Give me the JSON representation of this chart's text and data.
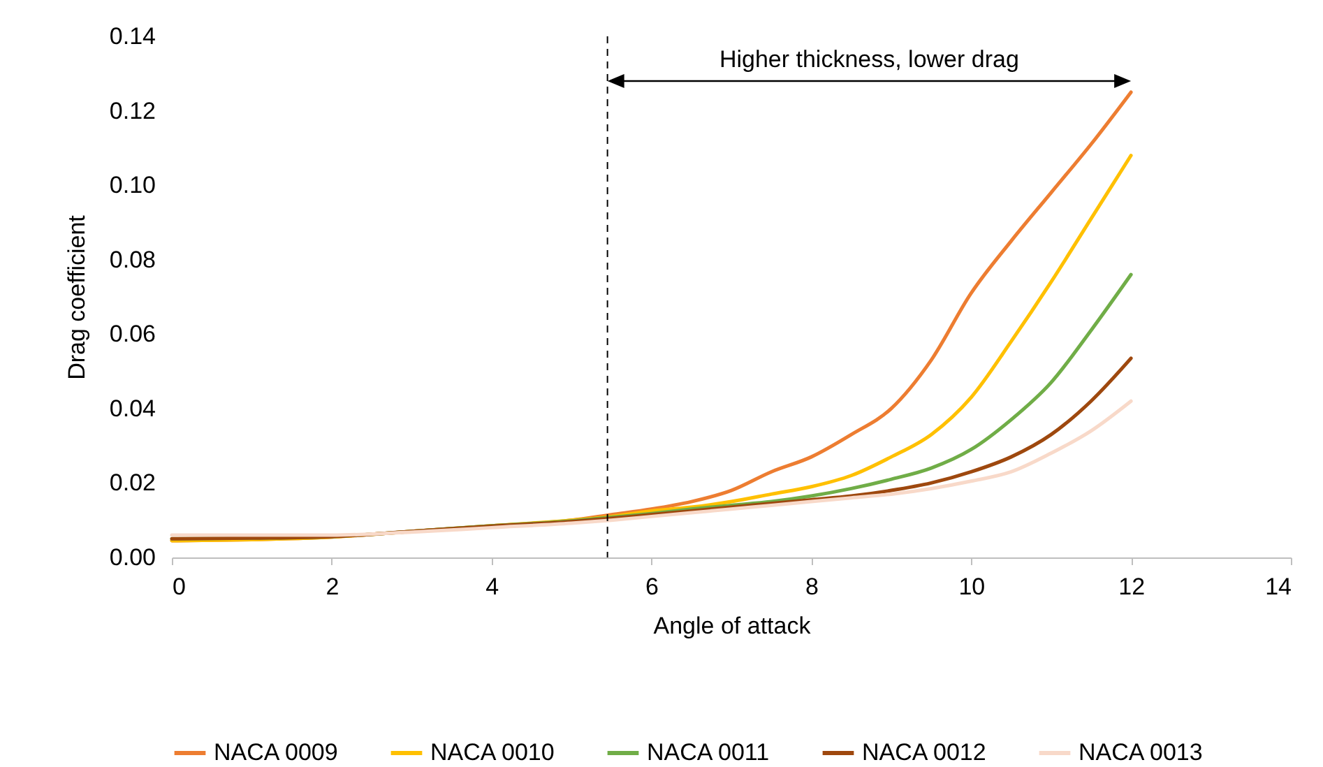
{
  "chart_data": {
    "type": "line",
    "xlabel": "Angle of attack",
    "ylabel": "Drag coefficient",
    "x": [
      0,
      1,
      2,
      3,
      4,
      5,
      5.5,
      6,
      6.5,
      7,
      7.5,
      8,
      8.5,
      9,
      9.5,
      10,
      10.5,
      11,
      11.5,
      12
    ],
    "series": [
      {
        "name": "NACA 0009",
        "color": "#ed7d31",
        "values": [
          0.0045,
          0.0048,
          0.0055,
          0.007,
          0.0085,
          0.01,
          0.0115,
          0.013,
          0.015,
          0.018,
          0.023,
          0.027,
          0.033,
          0.04,
          0.053,
          0.071,
          0.085,
          0.098,
          0.111,
          0.125
        ]
      },
      {
        "name": "NACA 0010",
        "color": "#ffc000",
        "values": [
          0.0045,
          0.0048,
          0.0055,
          0.007,
          0.0085,
          0.01,
          0.011,
          0.0125,
          0.0135,
          0.015,
          0.017,
          0.019,
          0.022,
          0.027,
          0.033,
          0.043,
          0.058,
          0.074,
          0.091,
          0.108
        ]
      },
      {
        "name": "NACA 0011",
        "color": "#70ad47",
        "values": [
          0.005,
          0.0052,
          0.0056,
          0.007,
          0.0085,
          0.0098,
          0.0108,
          0.0118,
          0.013,
          0.014,
          0.015,
          0.0165,
          0.0185,
          0.021,
          0.024,
          0.029,
          0.037,
          0.047,
          0.061,
          0.076
        ]
      },
      {
        "name": "NACA 0012",
        "color": "#9e480e",
        "values": [
          0.005,
          0.0052,
          0.0056,
          0.007,
          0.0084,
          0.0096,
          0.0105,
          0.0115,
          0.0125,
          0.0135,
          0.0145,
          0.0155,
          0.0165,
          0.018,
          0.02,
          0.023,
          0.027,
          0.033,
          0.042,
          0.0535
        ]
      },
      {
        "name": "NACA 0013",
        "color": "#f8d9c9",
        "values": [
          0.006,
          0.006,
          0.006,
          0.0068,
          0.008,
          0.0092,
          0.01,
          0.011,
          0.012,
          0.013,
          0.014,
          0.015,
          0.016,
          0.017,
          0.0185,
          0.0205,
          0.023,
          0.028,
          0.034,
          0.042
        ]
      }
    ],
    "xlim": [
      0,
      14
    ],
    "xticks": [
      0,
      2,
      4,
      6,
      8,
      10,
      12,
      14
    ],
    "ylim": [
      0,
      0.14
    ],
    "yticks": [
      {
        "value": 0,
        "label": "0.00"
      },
      {
        "value": 0.02,
        "label": "0.02"
      },
      {
        "value": 0.04,
        "label": "0.04"
      },
      {
        "value": 0.06,
        "label": "0.06"
      },
      {
        "value": 0.08,
        "label": "0.08"
      },
      {
        "value": 0.1,
        "label": "0.10"
      },
      {
        "value": 0.12,
        "label": "0.12"
      },
      {
        "value": 0.14,
        "label": "0.14"
      }
    ],
    "ref_lines": [
      {
        "axis": "x",
        "value": 5.45,
        "color": "#000000",
        "line_style": "dashed"
      }
    ],
    "annotations": [
      "Higher thickness, lower drag"
    ],
    "grid": false,
    "legend": "bottom",
    "marker": "none",
    "line_style": "solid"
  }
}
